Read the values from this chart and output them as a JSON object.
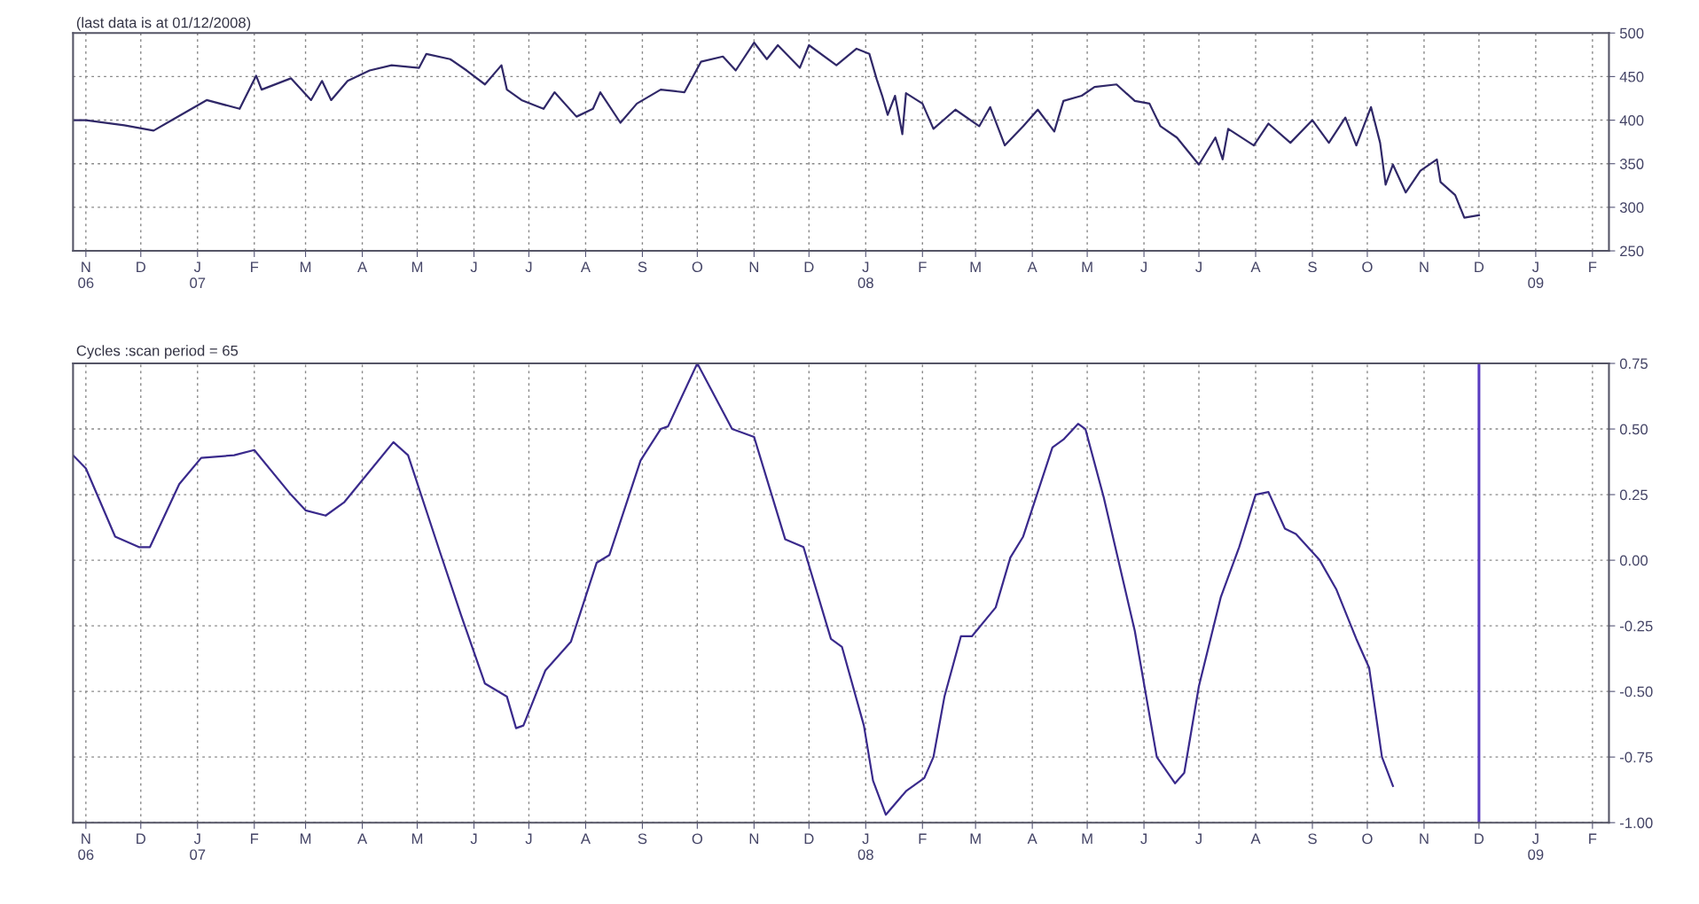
{
  "chart_data": [
    {
      "type": "line",
      "title": "(last data is at 01/12/2008)",
      "xlim": [
        "2006-10-25",
        "2009-02-10"
      ],
      "ylim": [
        250,
        500
      ],
      "yticks": [
        250,
        300,
        350,
        400,
        450,
        500
      ],
      "xticks": [
        {
          "value": "2006-11-01",
          "label": "N\n06"
        },
        {
          "value": "2006-12-01",
          "label": "D"
        },
        {
          "value": "2007-01-01",
          "label": "J\n07"
        },
        {
          "value": "2007-02-01",
          "label": "F"
        },
        {
          "value": "2007-03-01",
          "label": "M"
        },
        {
          "value": "2007-04-01",
          "label": "A"
        },
        {
          "value": "2007-05-01",
          "label": "M"
        },
        {
          "value": "2007-06-01",
          "label": "J"
        },
        {
          "value": "2007-07-01",
          "label": "J"
        },
        {
          "value": "2007-08-01",
          "label": "A"
        },
        {
          "value": "2007-09-01",
          "label": "S"
        },
        {
          "value": "2007-10-01",
          "label": "O"
        },
        {
          "value": "2007-11-01",
          "label": "N"
        },
        {
          "value": "2007-12-01",
          "label": "D"
        },
        {
          "value": "2008-01-01",
          "label": "J\n08"
        },
        {
          "value": "2008-02-01",
          "label": "F"
        },
        {
          "value": "2008-03-01",
          "label": "M"
        },
        {
          "value": "2008-04-01",
          "label": "A"
        },
        {
          "value": "2008-05-01",
          "label": "M"
        },
        {
          "value": "2008-06-01",
          "label": "J"
        },
        {
          "value": "2008-07-01",
          "label": "J"
        },
        {
          "value": "2008-08-01",
          "label": "A"
        },
        {
          "value": "2008-09-01",
          "label": "S"
        },
        {
          "value": "2008-10-01",
          "label": "O"
        },
        {
          "value": "2008-11-01",
          "label": "N"
        },
        {
          "value": "2008-12-01",
          "label": "D"
        },
        {
          "value": "2009-01-01",
          "label": "J\n09"
        },
        {
          "value": "2009-02-01",
          "label": "F"
        }
      ],
      "grid": true,
      "line_style": "solid",
      "series": [
        {
          "color": "#302868",
          "x": [
            "2006-10-25",
            "2006-11-01",
            "2006-11-22",
            "2006-12-08",
            "2006-12-18",
            "2007-01-06",
            "2007-01-24",
            "2007-02-02",
            "2007-02-05",
            "2007-02-21",
            "2007-03-04",
            "2007-03-10",
            "2007-03-15",
            "2007-03-24",
            "2007-04-05",
            "2007-04-17",
            "2007-05-02",
            "2007-05-06",
            "2007-05-19",
            "2007-05-28",
            "2007-06-07",
            "2007-06-16",
            "2007-06-19",
            "2007-06-27",
            "2007-07-09",
            "2007-07-15",
            "2007-07-27",
            "2007-08-05",
            "2007-08-09",
            "2007-08-20",
            "2007-08-29",
            "2007-09-11",
            "2007-09-24",
            "2007-10-03",
            "2007-10-15",
            "2007-10-22",
            "2007-11-01",
            "2007-11-08",
            "2007-11-14",
            "2007-11-26",
            "2007-12-01",
            "2007-12-16",
            "2007-12-27",
            "2008-01-03",
            "2008-01-07",
            "2008-01-10",
            "2008-01-13",
            "2008-01-17",
            "2008-01-21",
            "2008-01-23",
            "2008-02-01",
            "2008-02-07",
            "2008-02-19",
            "2008-03-03",
            "2008-03-09",
            "2008-03-17",
            "2008-03-27",
            "2008-04-04",
            "2008-04-13",
            "2008-04-18",
            "2008-04-28",
            "2008-05-05",
            "2008-05-17",
            "2008-05-27",
            "2008-06-04",
            "2008-06-10",
            "2008-06-19",
            "2008-07-01",
            "2008-07-10",
            "2008-07-14",
            "2008-07-17",
            "2008-07-31",
            "2008-08-08",
            "2008-08-20",
            "2008-09-01",
            "2008-09-10",
            "2008-09-19",
            "2008-09-25",
            "2008-10-03",
            "2008-10-08",
            "2008-10-11",
            "2008-10-15",
            "2008-10-22",
            "2008-10-30",
            "2008-11-08",
            "2008-11-10",
            "2008-11-18",
            "2008-11-23",
            "2008-12-01"
          ],
          "values": [
            400,
            400,
            394,
            388,
            400,
            423,
            413,
            451,
            435,
            448,
            423,
            445,
            423,
            445,
            457,
            463,
            460,
            476,
            470,
            457,
            441,
            463,
            435,
            423,
            413,
            432,
            404,
            413,
            432,
            397,
            419,
            435,
            432,
            467,
            473,
            457,
            489,
            470,
            486,
            460,
            486,
            463,
            482,
            476,
            447,
            428,
            406,
            428,
            384,
            431,
            419,
            390,
            412,
            393,
            415,
            371,
            393,
            412,
            387,
            422,
            428,
            438,
            441,
            422,
            419,
            393,
            380,
            349,
            380,
            355,
            390,
            371,
            396,
            374,
            400,
            374,
            403,
            371,
            415,
            374,
            326,
            349,
            317,
            342,
            355,
            329,
            314,
            288,
            291
          ]
        }
      ]
    },
    {
      "type": "line",
      "title": "Cycles :scan period = 65",
      "xlim": [
        "2006-10-25",
        "2009-02-10"
      ],
      "ylim": [
        -1.0,
        0.75
      ],
      "yticks": [
        {
          "value": -1.0,
          "label": "-1.00"
        },
        {
          "value": -0.75,
          "label": "-0.75"
        },
        {
          "value": -0.5,
          "label": "-0.50"
        },
        {
          "value": -0.25,
          "label": "-0.25"
        },
        {
          "value": 0.0,
          "label": "0.00"
        },
        {
          "value": 0.25,
          "label": "0.25"
        },
        {
          "value": 0.5,
          "label": "0.50"
        },
        {
          "value": 0.75,
          "label": "0.75"
        }
      ],
      "xticks": [
        {
          "value": "2006-11-01",
          "label": "N\n06"
        },
        {
          "value": "2006-12-01",
          "label": "D"
        },
        {
          "value": "2007-01-01",
          "label": "J\n07"
        },
        {
          "value": "2007-02-01",
          "label": "F"
        },
        {
          "value": "2007-03-01",
          "label": "M"
        },
        {
          "value": "2007-04-01",
          "label": "A"
        },
        {
          "value": "2007-05-01",
          "label": "M"
        },
        {
          "value": "2007-06-01",
          "label": "J"
        },
        {
          "value": "2007-07-01",
          "label": "J"
        },
        {
          "value": "2007-08-01",
          "label": "A"
        },
        {
          "value": "2007-09-01",
          "label": "S"
        },
        {
          "value": "2007-10-01",
          "label": "O"
        },
        {
          "value": "2007-11-01",
          "label": "N"
        },
        {
          "value": "2007-12-01",
          "label": "D"
        },
        {
          "value": "2008-01-01",
          "label": "J\n08"
        },
        {
          "value": "2008-02-01",
          "label": "F"
        },
        {
          "value": "2008-03-01",
          "label": "M"
        },
        {
          "value": "2008-04-01",
          "label": "A"
        },
        {
          "value": "2008-05-01",
          "label": "M"
        },
        {
          "value": "2008-06-01",
          "label": "J"
        },
        {
          "value": "2008-07-01",
          "label": "J"
        },
        {
          "value": "2008-08-01",
          "label": "A"
        },
        {
          "value": "2008-09-01",
          "label": "S"
        },
        {
          "value": "2008-10-01",
          "label": "O"
        },
        {
          "value": "2008-11-01",
          "label": "N"
        },
        {
          "value": "2008-12-01",
          "label": "D"
        },
        {
          "value": "2009-01-01",
          "label": "J\n09"
        },
        {
          "value": "2009-02-01",
          "label": "F"
        }
      ],
      "grid": true,
      "line_style": "solid",
      "ref_lines": [
        {
          "axis": "x",
          "value": "2008-12-01",
          "color": "#5a3cc0"
        }
      ],
      "series": [
        {
          "color": "#3a2a8c",
          "x": [
            "2006-10-25",
            "2006-11-01",
            "2006-11-17",
            "2006-11-30",
            "2006-12-06",
            "2006-12-22",
            "2007-01-03",
            "2007-01-21",
            "2007-02-01",
            "2007-02-21",
            "2007-03-01",
            "2007-03-12",
            "2007-03-22",
            "2007-04-18",
            "2007-04-26",
            "2007-05-13",
            "2007-05-25",
            "2007-06-07",
            "2007-06-19",
            "2007-06-24",
            "2007-06-28",
            "2007-07-10",
            "2007-07-24",
            "2007-08-07",
            "2007-08-14",
            "2007-08-31",
            "2007-09-11",
            "2007-09-15",
            "2007-10-01",
            "2007-10-20",
            "2007-11-01",
            "2007-11-18",
            "2007-11-28",
            "2007-12-13",
            "2007-12-19",
            "2007-12-31",
            "2008-01-05",
            "2008-01-12",
            "2008-01-23",
            "2008-02-02",
            "2008-02-07",
            "2008-02-13",
            "2008-02-22",
            "2008-02-28",
            "2008-03-12",
            "2008-03-20",
            "2008-03-27",
            "2008-04-12",
            "2008-04-18",
            "2008-04-26",
            "2008-04-30",
            "2008-05-10",
            "2008-05-27",
            "2008-06-08",
            "2008-06-18",
            "2008-06-23",
            "2008-07-01",
            "2008-07-13",
            "2008-07-23",
            "2008-08-01",
            "2008-08-08",
            "2008-08-17",
            "2008-08-23",
            "2008-09-05",
            "2008-09-14",
            "2008-09-25",
            "2008-10-02",
            "2008-10-09",
            "2008-10-15"
          ],
          "values": [
            0.4,
            0.35,
            0.09,
            0.05,
            0.05,
            0.29,
            0.39,
            0.4,
            0.42,
            0.25,
            0.19,
            0.17,
            0.22,
            0.45,
            0.4,
            0.04,
            -0.21,
            -0.47,
            -0.52,
            -0.64,
            -0.63,
            -0.42,
            -0.31,
            -0.01,
            0.02,
            0.38,
            0.5,
            0.51,
            0.75,
            0.5,
            0.47,
            0.08,
            0.05,
            -0.3,
            -0.33,
            -0.63,
            -0.84,
            -0.97,
            -0.88,
            -0.83,
            -0.75,
            -0.52,
            -0.29,
            -0.29,
            -0.18,
            0.01,
            0.09,
            0.43,
            0.46,
            0.52,
            0.5,
            0.24,
            -0.27,
            -0.75,
            -0.85,
            -0.81,
            -0.48,
            -0.14,
            0.05,
            0.25,
            0.26,
            0.12,
            0.1,
            0.0,
            -0.11,
            -0.3,
            -0.41,
            -0.75,
            -0.86
          ]
        }
      ]
    }
  ]
}
